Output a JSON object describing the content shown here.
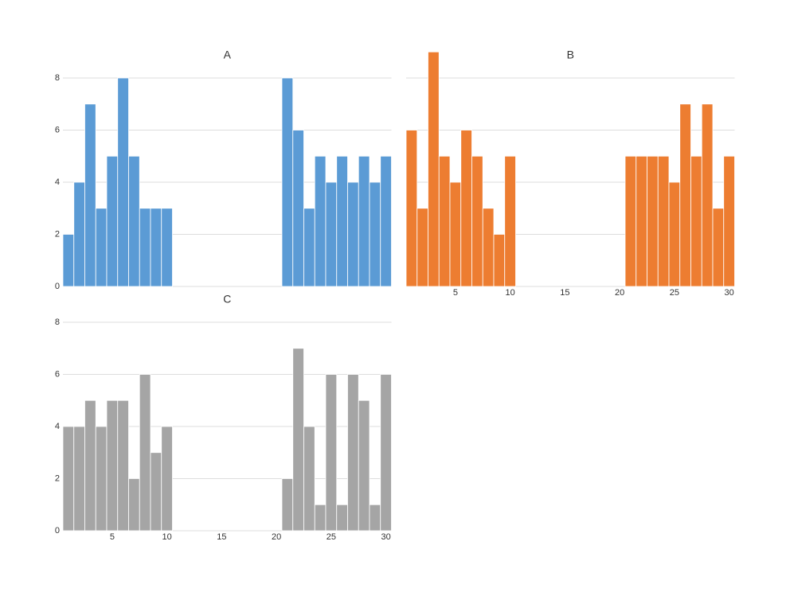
{
  "chart_data": [
    {
      "type": "bar",
      "title": "A",
      "color": "#5b9bd5",
      "x": [
        1,
        2,
        3,
        4,
        5,
        6,
        7,
        8,
        9,
        10,
        11,
        12,
        13,
        14,
        15,
        16,
        17,
        18,
        19,
        20,
        21,
        22,
        23,
        24,
        25,
        26,
        27,
        28,
        29,
        30
      ],
      "values": [
        2,
        4,
        7,
        3,
        5,
        8,
        5,
        3,
        3,
        3,
        null,
        null,
        null,
        null,
        null,
        null,
        null,
        null,
        null,
        null,
        8,
        6,
        3,
        5,
        4,
        5,
        4,
        5,
        4,
        5
      ],
      "xlim": [
        0.5,
        30.5
      ],
      "ylim": [
        0,
        8
      ],
      "yticks": [
        0,
        2,
        4,
        6,
        8
      ],
      "grid": true
    },
    {
      "type": "bar",
      "title": "B",
      "color": "#ed7d31",
      "x": [
        1,
        2,
        3,
        4,
        5,
        6,
        7,
        8,
        9,
        10,
        11,
        12,
        13,
        14,
        15,
        16,
        17,
        18,
        19,
        20,
        21,
        22,
        23,
        24,
        25,
        26,
        27,
        28,
        29,
        30
      ],
      "values": [
        6,
        3,
        9,
        5,
        4,
        6,
        5,
        3,
        2,
        5,
        null,
        null,
        null,
        null,
        null,
        null,
        null,
        null,
        null,
        null,
        5,
        5,
        5,
        5,
        4,
        7,
        5,
        7,
        3,
        5
      ],
      "xlim": [
        0.5,
        30.5
      ],
      "xticks": [
        5,
        10,
        15,
        20,
        25,
        30
      ],
      "ylim": [
        0,
        8
      ],
      "yticks": [
        0,
        2,
        4,
        6,
        8
      ],
      "show_ytick_labels": false,
      "grid": true
    },
    {
      "type": "bar",
      "title": "C",
      "color": "#a5a5a5",
      "x": [
        1,
        2,
        3,
        4,
        5,
        6,
        7,
        8,
        9,
        10,
        11,
        12,
        13,
        14,
        15,
        16,
        17,
        18,
        19,
        20,
        21,
        22,
        23,
        24,
        25,
        26,
        27,
        28,
        29,
        30
      ],
      "values": [
        4,
        4,
        5,
        4,
        5,
        5,
        2,
        6,
        3,
        4,
        null,
        null,
        null,
        null,
        null,
        null,
        null,
        null,
        null,
        null,
        2,
        7,
        4,
        1,
        6,
        1,
        6,
        5,
        1,
        6
      ],
      "xlim": [
        0.5,
        30.5
      ],
      "xticks": [
        5,
        10,
        15,
        20,
        25,
        30
      ],
      "ylim": [
        0,
        8
      ],
      "yticks": [
        0,
        2,
        4,
        6,
        8
      ],
      "grid": true
    }
  ]
}
